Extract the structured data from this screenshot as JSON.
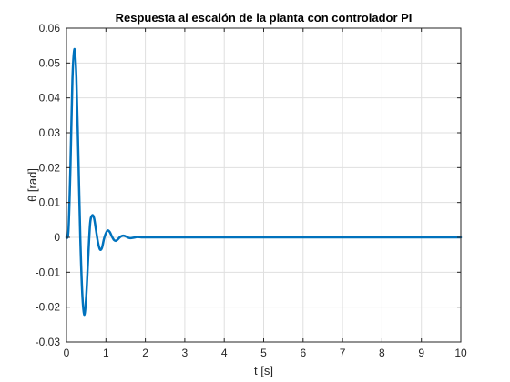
{
  "chart_data": {
    "type": "line",
    "title": "Respuesta al escalón de la planta con controlador PI",
    "xlabel": "t [s]",
    "ylabel": "θ [rad]",
    "xlim": [
      0,
      10
    ],
    "ylim": [
      -0.03,
      0.06
    ],
    "x_ticks": [
      0,
      1,
      2,
      3,
      4,
      5,
      6,
      7,
      8,
      9,
      10
    ],
    "x_tick_labels": [
      "0",
      "1",
      "2",
      "3",
      "4",
      "5",
      "6",
      "7",
      "8",
      "9",
      "10"
    ],
    "y_ticks": [
      -0.03,
      -0.02,
      -0.01,
      0,
      0.01,
      0.02,
      0.03,
      0.04,
      0.05,
      0.06
    ],
    "y_tick_labels": [
      "-0.03",
      "-0.02",
      "-0.01",
      "0",
      "0.01",
      "0.02",
      "0.03",
      "0.04",
      "0.05",
      "0.06"
    ],
    "grid": true,
    "box": true,
    "series": [
      {
        "color": "#0072bd",
        "x": [
          0,
          0.05,
          0.1,
          0.15,
          0.2,
          0.25,
          0.3,
          0.35,
          0.4,
          0.45,
          0.5,
          0.55,
          0.6,
          0.65,
          0.7,
          0.75,
          0.8,
          0.85,
          0.9,
          0.95,
          1.0,
          1.05,
          1.1,
          1.15,
          1.2,
          1.25,
          1.3,
          1.35,
          1.4,
          1.45,
          1.5,
          1.55,
          1.6,
          1.65,
          1.7,
          1.75,
          1.8,
          1.9,
          2.0,
          2.1,
          2.2,
          2.3,
          2.4,
          2.6,
          2.8,
          3.0,
          4.0,
          5.0,
          6.0,
          7.0,
          8.0,
          9.0,
          10.0
        ],
        "y": [
          0,
          0.002,
          0.02,
          0.045,
          0.054,
          0.046,
          0.024,
          0.0,
          -0.016,
          -0.0222,
          -0.017,
          -0.006,
          0.004,
          0.0063,
          0.0055,
          0.002,
          -0.0015,
          -0.0035,
          -0.003,
          -0.0005,
          0.0012,
          0.002,
          0.0015,
          0.0003,
          -0.0007,
          -0.001,
          -0.0006,
          0.0,
          0.0004,
          0.0005,
          0.0003,
          0.0,
          -0.0002,
          -0.0002,
          -0.0001,
          0.0,
          0.0001,
          0.0,
          0.0,
          0.0,
          0.0,
          0.0,
          0.0,
          0.0,
          0.0,
          0.0,
          0.0,
          0.0,
          0.0,
          0.0,
          0.0,
          0.0,
          0.0
        ]
      }
    ]
  }
}
